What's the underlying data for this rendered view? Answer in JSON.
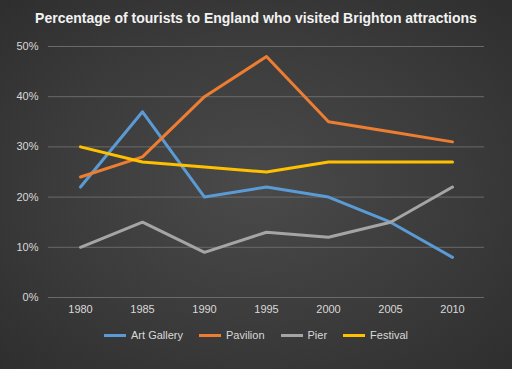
{
  "chart_data": {
    "type": "line",
    "title": "Percentage of tourists to England who visited Brighton attractions",
    "categories": [
      "1980",
      "1985",
      "1990",
      "1995",
      "2000",
      "2005",
      "2010"
    ],
    "series": [
      {
        "name": "Art Gallery",
        "color": "#5b9bd5",
        "values": [
          22,
          37,
          20,
          22,
          20,
          15,
          8
        ]
      },
      {
        "name": "Pavilion",
        "color": "#ed7d31",
        "values": [
          24,
          28,
          40,
          48,
          35,
          33,
          31
        ]
      },
      {
        "name": "Pier",
        "color": "#a5a5a5",
        "values": [
          10,
          15,
          9,
          13,
          12,
          15,
          22
        ]
      },
      {
        "name": "Festival",
        "color": "#ffc000",
        "values": [
          30,
          27,
          26,
          25,
          27,
          27,
          27
        ]
      }
    ],
    "ylim": [
      0,
      50
    ],
    "yticks": [
      {
        "value": 0,
        "label": "0%"
      },
      {
        "value": 10,
        "label": "10%"
      },
      {
        "value": 20,
        "label": "20%"
      },
      {
        "value": 30,
        "label": "30%"
      },
      {
        "value": 40,
        "label": "40%"
      },
      {
        "value": 50,
        "label": "50%"
      }
    ],
    "grid": true,
    "legend": "bottom"
  }
}
